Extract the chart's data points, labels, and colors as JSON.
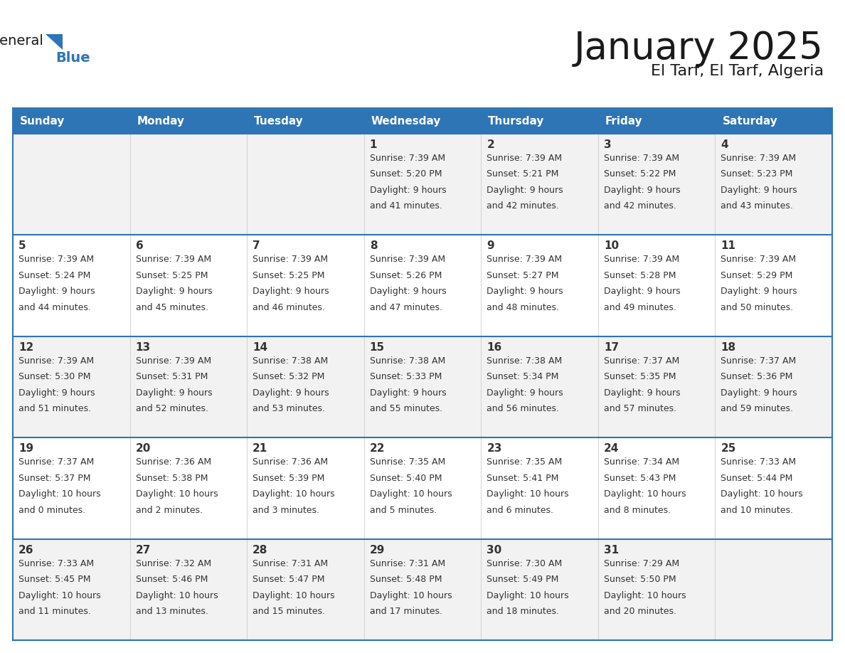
{
  "title": "January 2025",
  "subtitle": "El Tarf, El Tarf, Algeria",
  "days_of_week": [
    "Sunday",
    "Monday",
    "Tuesday",
    "Wednesday",
    "Thursday",
    "Friday",
    "Saturday"
  ],
  "header_bg": "#2E75B6",
  "header_text_color": "#FFFFFF",
  "cell_bg_odd": "#F2F2F2",
  "cell_bg_even": "#FFFFFF",
  "text_color": "#333333",
  "border_color": "#2E75B6",
  "title_color": "#1a1a1a",
  "subtitle_color": "#1a1a1a",
  "logo_black": "#1a1a1a",
  "logo_blue": "#2E75B6",
  "calendar_data": [
    [
      null,
      null,
      null,
      {
        "day": 1,
        "sunrise": "7:39 AM",
        "sunset": "5:20 PM",
        "daylight_line1": "Daylight: 9 hours",
        "daylight_line2": "and 41 minutes."
      },
      {
        "day": 2,
        "sunrise": "7:39 AM",
        "sunset": "5:21 PM",
        "daylight_line1": "Daylight: 9 hours",
        "daylight_line2": "and 42 minutes."
      },
      {
        "day": 3,
        "sunrise": "7:39 AM",
        "sunset": "5:22 PM",
        "daylight_line1": "Daylight: 9 hours",
        "daylight_line2": "and 42 minutes."
      },
      {
        "day": 4,
        "sunrise": "7:39 AM",
        "sunset": "5:23 PM",
        "daylight_line1": "Daylight: 9 hours",
        "daylight_line2": "and 43 minutes."
      }
    ],
    [
      {
        "day": 5,
        "sunrise": "7:39 AM",
        "sunset": "5:24 PM",
        "daylight_line1": "Daylight: 9 hours",
        "daylight_line2": "and 44 minutes."
      },
      {
        "day": 6,
        "sunrise": "7:39 AM",
        "sunset": "5:25 PM",
        "daylight_line1": "Daylight: 9 hours",
        "daylight_line2": "and 45 minutes."
      },
      {
        "day": 7,
        "sunrise": "7:39 AM",
        "sunset": "5:25 PM",
        "daylight_line1": "Daylight: 9 hours",
        "daylight_line2": "and 46 minutes."
      },
      {
        "day": 8,
        "sunrise": "7:39 AM",
        "sunset": "5:26 PM",
        "daylight_line1": "Daylight: 9 hours",
        "daylight_line2": "and 47 minutes."
      },
      {
        "day": 9,
        "sunrise": "7:39 AM",
        "sunset": "5:27 PM",
        "daylight_line1": "Daylight: 9 hours",
        "daylight_line2": "and 48 minutes."
      },
      {
        "day": 10,
        "sunrise": "7:39 AM",
        "sunset": "5:28 PM",
        "daylight_line1": "Daylight: 9 hours",
        "daylight_line2": "and 49 minutes."
      },
      {
        "day": 11,
        "sunrise": "7:39 AM",
        "sunset": "5:29 PM",
        "daylight_line1": "Daylight: 9 hours",
        "daylight_line2": "and 50 minutes."
      }
    ],
    [
      {
        "day": 12,
        "sunrise": "7:39 AM",
        "sunset": "5:30 PM",
        "daylight_line1": "Daylight: 9 hours",
        "daylight_line2": "and 51 minutes."
      },
      {
        "day": 13,
        "sunrise": "7:39 AM",
        "sunset": "5:31 PM",
        "daylight_line1": "Daylight: 9 hours",
        "daylight_line2": "and 52 minutes."
      },
      {
        "day": 14,
        "sunrise": "7:38 AM",
        "sunset": "5:32 PM",
        "daylight_line1": "Daylight: 9 hours",
        "daylight_line2": "and 53 minutes."
      },
      {
        "day": 15,
        "sunrise": "7:38 AM",
        "sunset": "5:33 PM",
        "daylight_line1": "Daylight: 9 hours",
        "daylight_line2": "and 55 minutes."
      },
      {
        "day": 16,
        "sunrise": "7:38 AM",
        "sunset": "5:34 PM",
        "daylight_line1": "Daylight: 9 hours",
        "daylight_line2": "and 56 minutes."
      },
      {
        "day": 17,
        "sunrise": "7:37 AM",
        "sunset": "5:35 PM",
        "daylight_line1": "Daylight: 9 hours",
        "daylight_line2": "and 57 minutes."
      },
      {
        "day": 18,
        "sunrise": "7:37 AM",
        "sunset": "5:36 PM",
        "daylight_line1": "Daylight: 9 hours",
        "daylight_line2": "and 59 minutes."
      }
    ],
    [
      {
        "day": 19,
        "sunrise": "7:37 AM",
        "sunset": "5:37 PM",
        "daylight_line1": "Daylight: 10 hours",
        "daylight_line2": "and 0 minutes."
      },
      {
        "day": 20,
        "sunrise": "7:36 AM",
        "sunset": "5:38 PM",
        "daylight_line1": "Daylight: 10 hours",
        "daylight_line2": "and 2 minutes."
      },
      {
        "day": 21,
        "sunrise": "7:36 AM",
        "sunset": "5:39 PM",
        "daylight_line1": "Daylight: 10 hours",
        "daylight_line2": "and 3 minutes."
      },
      {
        "day": 22,
        "sunrise": "7:35 AM",
        "sunset": "5:40 PM",
        "daylight_line1": "Daylight: 10 hours",
        "daylight_line2": "and 5 minutes."
      },
      {
        "day": 23,
        "sunrise": "7:35 AM",
        "sunset": "5:41 PM",
        "daylight_line1": "Daylight: 10 hours",
        "daylight_line2": "and 6 minutes."
      },
      {
        "day": 24,
        "sunrise": "7:34 AM",
        "sunset": "5:43 PM",
        "daylight_line1": "Daylight: 10 hours",
        "daylight_line2": "and 8 minutes."
      },
      {
        "day": 25,
        "sunrise": "7:33 AM",
        "sunset": "5:44 PM",
        "daylight_line1": "Daylight: 10 hours",
        "daylight_line2": "and 10 minutes."
      }
    ],
    [
      {
        "day": 26,
        "sunrise": "7:33 AM",
        "sunset": "5:45 PM",
        "daylight_line1": "Daylight: 10 hours",
        "daylight_line2": "and 11 minutes."
      },
      {
        "day": 27,
        "sunrise": "7:32 AM",
        "sunset": "5:46 PM",
        "daylight_line1": "Daylight: 10 hours",
        "daylight_line2": "and 13 minutes."
      },
      {
        "day": 28,
        "sunrise": "7:31 AM",
        "sunset": "5:47 PM",
        "daylight_line1": "Daylight: 10 hours",
        "daylight_line2": "and 15 minutes."
      },
      {
        "day": 29,
        "sunrise": "7:31 AM",
        "sunset": "5:48 PM",
        "daylight_line1": "Daylight: 10 hours",
        "daylight_line2": "and 17 minutes."
      },
      {
        "day": 30,
        "sunrise": "7:30 AM",
        "sunset": "5:49 PM",
        "daylight_line1": "Daylight: 10 hours",
        "daylight_line2": "and 18 minutes."
      },
      {
        "day": 31,
        "sunrise": "7:29 AM",
        "sunset": "5:50 PM",
        "daylight_line1": "Daylight: 10 hours",
        "daylight_line2": "and 20 minutes."
      },
      null
    ]
  ]
}
